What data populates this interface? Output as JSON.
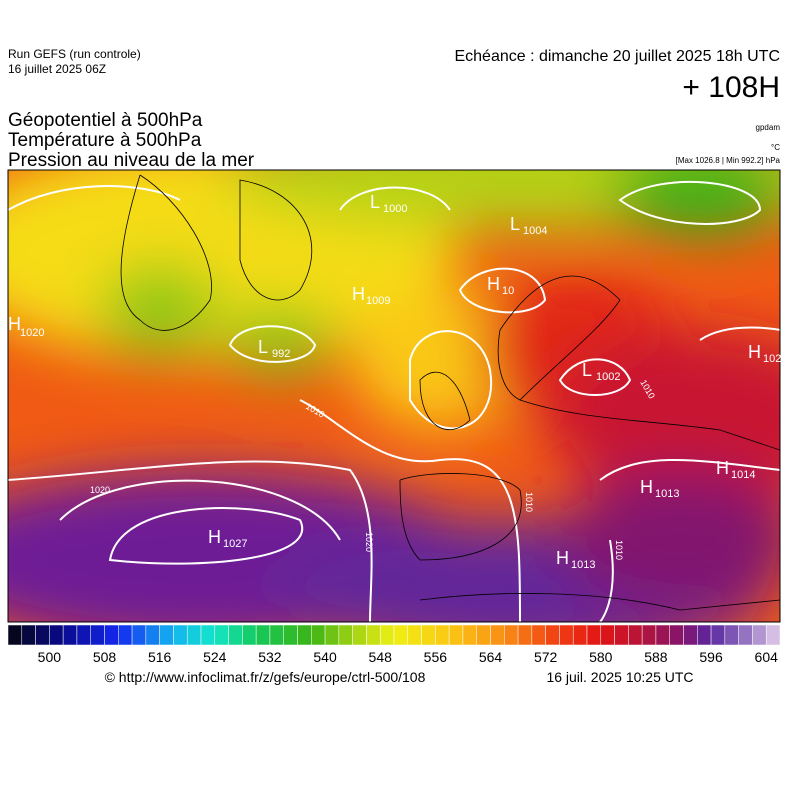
{
  "header": {
    "run": "Run GEFS (run controle)",
    "run_date": "16 juillet 2025 06Z",
    "valid": "Echéance : dimanche 20 juillet 2025 18h UTC",
    "lead": "+ 108H",
    "fields": [
      "Géopotentiel à 500hPa",
      "Température à 500hPa",
      "Pression au niveau de la mer"
    ],
    "units": [
      "gpdam",
      "°C",
      "[Max 1026.8 | Min 992.2] hPa"
    ]
  },
  "centers": [
    {
      "type": "H",
      "value": 1020
    },
    {
      "type": "L",
      "value": 1000
    },
    {
      "type": "L",
      "value": 1004
    },
    {
      "type": "H",
      "value": 1009
    },
    {
      "type": "L",
      "value": 992
    },
    {
      "type": "L",
      "value": 1002
    },
    {
      "type": "H",
      "value": 1014
    },
    {
      "type": "H",
      "value": 1013
    },
    {
      "type": "H",
      "value": 1027
    },
    {
      "type": "H",
      "value": 1013
    },
    {
      "type": "H",
      "value": 102
    },
    {
      "type": "H",
      "value": 10
    }
  ],
  "isobar_labels": [
    1020,
    1010,
    1020,
    1010,
    1010,
    1010
  ],
  "colorbar": {
    "range": [
      494,
      606
    ],
    "step": 2,
    "ticks": [
      500,
      508,
      516,
      524,
      532,
      540,
      548,
      556,
      564,
      572,
      580,
      588,
      596,
      604
    ],
    "color_stops": [
      [
        494,
        "#050510"
      ],
      [
        502,
        "#0a0a8c"
      ],
      [
        510,
        "#1428f0"
      ],
      [
        518,
        "#14b4f0"
      ],
      [
        524,
        "#14e6c8"
      ],
      [
        530,
        "#14c85a"
      ],
      [
        538,
        "#3cb414"
      ],
      [
        544,
        "#a0d214"
      ],
      [
        550,
        "#f0f014"
      ],
      [
        558,
        "#fac814"
      ],
      [
        566,
        "#fa8c14"
      ],
      [
        574,
        "#f03c14"
      ],
      [
        580,
        "#e11414"
      ],
      [
        586,
        "#b4143c"
      ],
      [
        592,
        "#82146e"
      ],
      [
        596,
        "#5a28a0"
      ],
      [
        602,
        "#a082c8"
      ],
      [
        606,
        "#e6d2ec"
      ]
    ]
  },
  "footer": {
    "source": "© http://www.infoclimat.fr/z/gefs/europe/ctrl-500/108",
    "generated": "16 juil. 2025 10:25 UTC"
  }
}
